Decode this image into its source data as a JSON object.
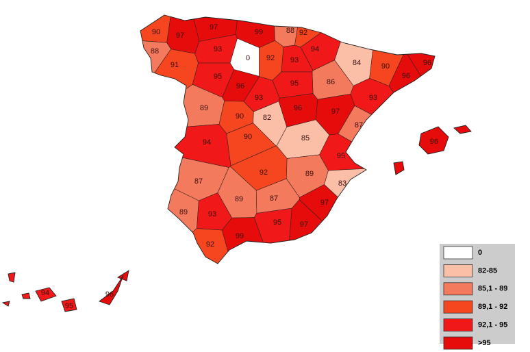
{
  "provinces": [
    {
      "label": "90",
      "color": "#f5461f"
    },
    {
      "label": "97",
      "color": "#e60c0c"
    },
    {
      "label": "97",
      "color": "#e60c0c"
    },
    {
      "label": "99",
      "color": "#e60c0c"
    },
    {
      "label": "88",
      "color": "#f47a5e"
    },
    {
      "label": "92",
      "color": "#f5461f"
    },
    {
      "label": "88",
      "color": "#f47a5e"
    },
    {
      "label": "91",
      "color": "#f5461f"
    },
    {
      "label": "93",
      "color": "#f01818"
    },
    {
      "label": "0",
      "color": "#ffffff"
    },
    {
      "label": "92",
      "color": "#f5461f"
    },
    {
      "label": "93",
      "color": "#f01818"
    },
    {
      "label": "94",
      "color": "#f01818"
    },
    {
      "label": "84",
      "color": "#fbbfa8"
    },
    {
      "label": "90",
      "color": "#f5461f"
    },
    {
      "label": "96",
      "color": "#e60c0c"
    },
    {
      "label": "96",
      "color": "#e60c0c"
    },
    {
      "label": "93",
      "color": "#f01818"
    },
    {
      "label": "86",
      "color": "#f47a5e"
    },
    {
      "label": "95",
      "color": "#f01818"
    },
    {
      "label": "96",
      "color": "#e60c0c"
    },
    {
      "label": "95",
      "color": "#f01818"
    },
    {
      "label": "93",
      "color": "#f01818"
    },
    {
      "label": "89",
      "color": "#f47a5e"
    },
    {
      "label": "90",
      "color": "#f5461f"
    },
    {
      "label": "82",
      "color": "#fbbfa8"
    },
    {
      "label": "96",
      "color": "#e60c0c"
    },
    {
      "label": "97",
      "color": "#e60c0c"
    },
    {
      "label": "87",
      "color": "#f47a5e"
    },
    {
      "label": "85",
      "color": "#fbbfa8"
    },
    {
      "label": "94",
      "color": "#f01818"
    },
    {
      "label": "90",
      "color": "#f5461f"
    },
    {
      "label": "95",
      "color": "#f01818"
    },
    {
      "label": "87",
      "color": "#f47a5e"
    },
    {
      "label": "92",
      "color": "#f5461f"
    },
    {
      "label": "89",
      "color": "#f47a5e"
    },
    {
      "label": "83",
      "color": "#fbbfa8"
    },
    {
      "label": "97",
      "color": "#e60c0c"
    },
    {
      "label": "89",
      "color": "#f47a5e"
    },
    {
      "label": "87",
      "color": "#f47a5e"
    },
    {
      "label": "89",
      "color": "#f47a5e"
    },
    {
      "label": "93",
      "color": "#f01818"
    },
    {
      "label": "95",
      "color": "#f01818"
    },
    {
      "label": "97",
      "color": "#e60c0c"
    },
    {
      "label": "92",
      "color": "#f5461f"
    },
    {
      "label": "99",
      "color": "#e60c0c"
    },
    {
      "label": "96",
      "color": "#e60c0c"
    },
    {
      "label": "94",
      "color": "#f01818"
    },
    {
      "label": "95",
      "color": "#f01818"
    },
    {
      "label": "96",
      "color": "#e60c0c"
    }
  ],
  "legend": [
    {
      "label": "0",
      "color": "#ffffff"
    },
    {
      "label": "82-85",
      "color": "#fbbfa8"
    },
    {
      "label": "85,1 - 89",
      "color": "#f47a5e"
    },
    {
      "label": "89,1 - 92",
      "color": "#f5461f"
    },
    {
      "label": "92,1 - 95",
      "color": "#f01818"
    },
    {
      "label": ">95",
      "color": "#e60c0c"
    }
  ]
}
